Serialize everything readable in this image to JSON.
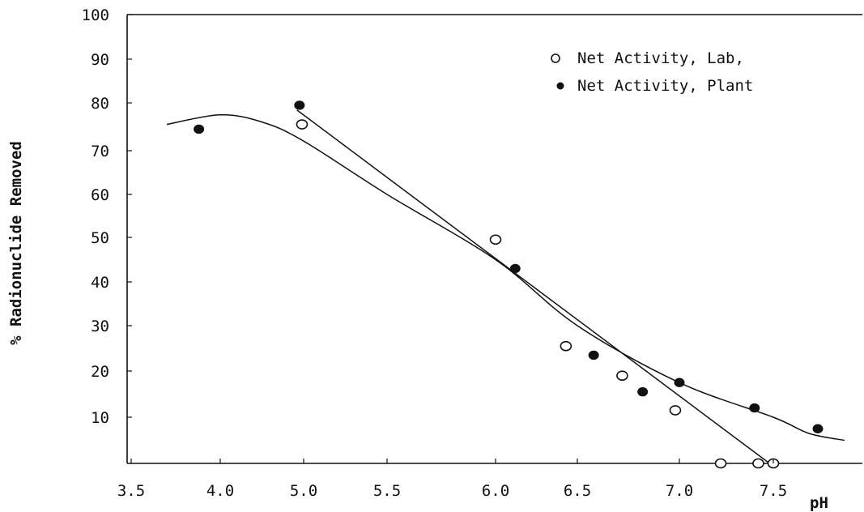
{
  "chart_data": {
    "type": "scatter",
    "xlabel": "pH",
    "ylabel": "% Radionuclide Removed",
    "x_ticks": [
      "3.5",
      "4.0",
      "5.0",
      "5.5",
      "6.0",
      "6.5",
      "7.0",
      "7.5"
    ],
    "y_ticks": [
      "10",
      "20",
      "30",
      "40",
      "50",
      "60",
      "70",
      "80",
      "90",
      "100"
    ],
    "series": [
      {
        "name": "Net Activity, Lab,",
        "marker": "open-circle",
        "color": "#111111",
        "points": [
          {
            "x": 4.98,
            "y": 75.5
          },
          {
            "x": 6.0,
            "y": 49.5
          },
          {
            "x": 6.43,
            "y": 25.5
          },
          {
            "x": 6.72,
            "y": 19.0
          },
          {
            "x": 6.98,
            "y": 11.5
          },
          {
            "x": 7.22,
            "y": 0.0
          },
          {
            "x": 7.42,
            "y": 0.0
          },
          {
            "x": 7.5,
            "y": 0.0
          }
        ],
        "fit_line": [
          {
            "x": 4.92,
            "y": 78.5
          },
          {
            "x": 7.48,
            "y": 0.0
          }
        ]
      },
      {
        "name": "Net Activity, Plant",
        "marker": "filled-circle",
        "color": "#111111",
        "points": [
          {
            "x": 3.88,
            "y": 74.5
          },
          {
            "x": 4.95,
            "y": 79.5
          },
          {
            "x": 6.12,
            "y": 43.0
          },
          {
            "x": 6.58,
            "y": 23.5
          },
          {
            "x": 6.82,
            "y": 15.5
          },
          {
            "x": 7.0,
            "y": 17.5
          },
          {
            "x": 7.4,
            "y": 12.0
          },
          {
            "x": 7.75,
            "y": 7.5
          }
        ],
        "fit_curve": [
          {
            "x": 3.7,
            "y": 75.5
          },
          {
            "x": 4.0,
            "y": 77.5
          },
          {
            "x": 4.5,
            "y": 76.0
          },
          {
            "x": 5.0,
            "y": 72.0
          },
          {
            "x": 5.5,
            "y": 60.0
          },
          {
            "x": 6.0,
            "y": 45.0
          },
          {
            "x": 6.5,
            "y": 30.0
          },
          {
            "x": 7.0,
            "y": 17.5
          },
          {
            "x": 7.5,
            "y": 10.0
          },
          {
            "x": 7.7,
            "y": 6.5
          },
          {
            "x": 7.9,
            "y": 5.0
          }
        ]
      }
    ],
    "legend_position": "top-right",
    "grid": false
  }
}
